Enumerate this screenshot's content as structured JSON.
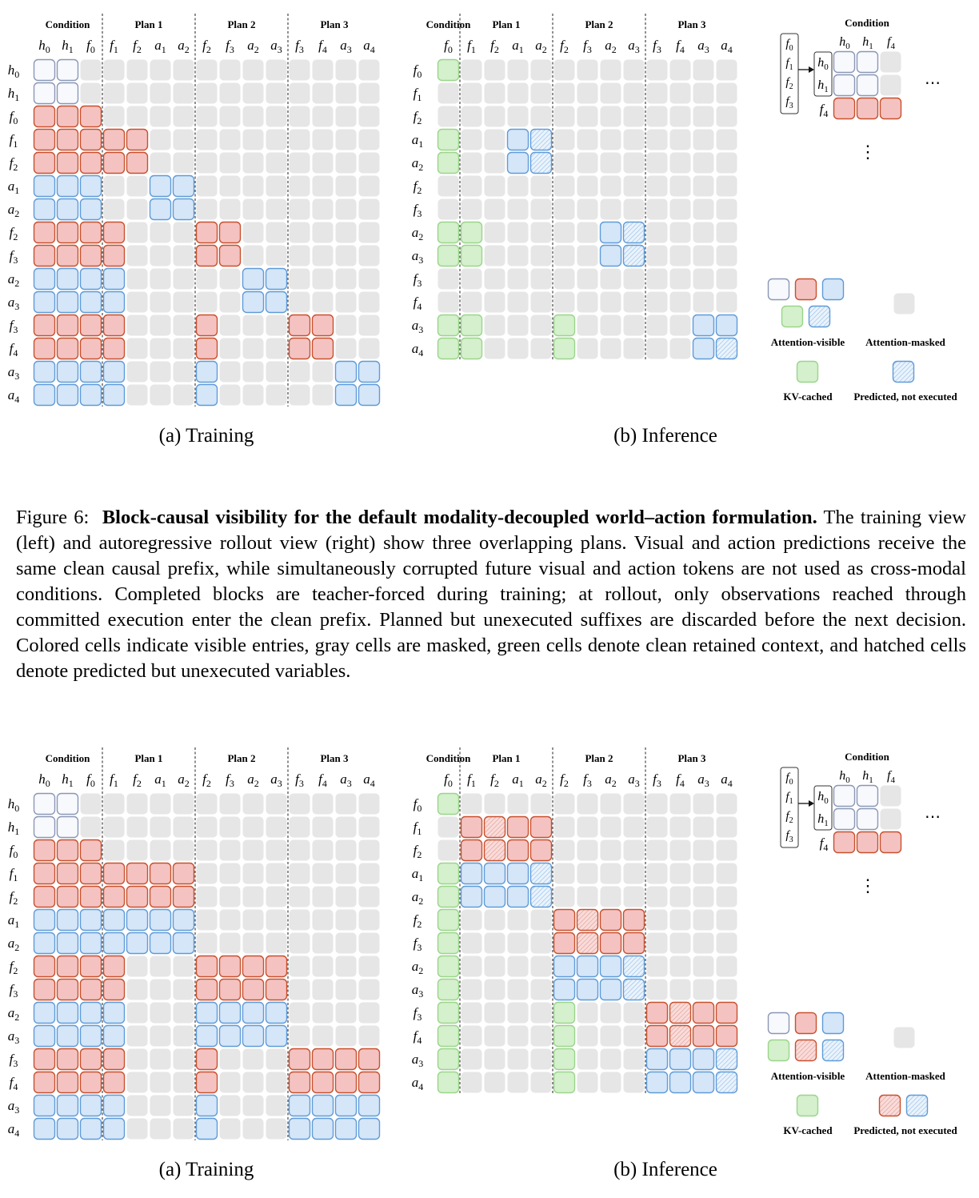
{
  "colors": {
    "masked": "#e6e6e6",
    "red_fill": "#f4c3c1",
    "red_stroke": "#c8502e",
    "blue_fill": "#d5e6f8",
    "blue_stroke": "#5f9bd8",
    "white_fill": "#f8f9fd",
    "white_stroke": "#8a97b6",
    "green_fill": "#d4f0cc",
    "green_stroke": "#9ad58a"
  },
  "icons": [
    "right-arrow-icon",
    "horizontal-ellipsis-icon",
    "vertical-ellipsis-icon"
  ],
  "header_groups_full": [
    "Condition",
    "Plan 1",
    "Plan 2",
    "Plan 3"
  ],
  "header_groups_inference": [
    "Condition",
    "Plan 1",
    "Plan 2",
    "Plan 3"
  ],
  "col_tokens_full": [
    {
      "b": "h",
      "s": "0"
    },
    {
      "b": "h",
      "s": "1"
    },
    {
      "b": "f",
      "s": "0"
    },
    {
      "b": "f",
      "s": "1"
    },
    {
      "b": "f",
      "s": "2"
    },
    {
      "b": "a",
      "s": "1"
    },
    {
      "b": "a",
      "s": "2"
    },
    {
      "b": "f",
      "s": "2"
    },
    {
      "b": "f",
      "s": "3"
    },
    {
      "b": "a",
      "s": "2"
    },
    {
      "b": "a",
      "s": "3"
    },
    {
      "b": "f",
      "s": "3"
    },
    {
      "b": "f",
      "s": "4"
    },
    {
      "b": "a",
      "s": "3"
    },
    {
      "b": "a",
      "s": "4"
    }
  ],
  "row_tokens_full": [
    {
      "b": "h",
      "s": "0"
    },
    {
      "b": "h",
      "s": "1"
    },
    {
      "b": "f",
      "s": "0"
    },
    {
      "b": "f",
      "s": "1"
    },
    {
      "b": "f",
      "s": "2"
    },
    {
      "b": "a",
      "s": "1"
    },
    {
      "b": "a",
      "s": "2"
    },
    {
      "b": "f",
      "s": "2"
    },
    {
      "b": "f",
      "s": "3"
    },
    {
      "b": "a",
      "s": "2"
    },
    {
      "b": "a",
      "s": "3"
    },
    {
      "b": "f",
      "s": "3"
    },
    {
      "b": "f",
      "s": "4"
    },
    {
      "b": "a",
      "s": "3"
    },
    {
      "b": "a",
      "s": "4"
    }
  ],
  "col_tokens_inference": [
    {
      "b": "f",
      "s": "0"
    },
    {
      "b": "f",
      "s": "1"
    },
    {
      "b": "f",
      "s": "2"
    },
    {
      "b": "a",
      "s": "1"
    },
    {
      "b": "a",
      "s": "2"
    },
    {
      "b": "f",
      "s": "2"
    },
    {
      "b": "f",
      "s": "3"
    },
    {
      "b": "a",
      "s": "2"
    },
    {
      "b": "a",
      "s": "3"
    },
    {
      "b": "f",
      "s": "3"
    },
    {
      "b": "f",
      "s": "4"
    },
    {
      "b": "a",
      "s": "3"
    },
    {
      "b": "a",
      "s": "4"
    }
  ],
  "row_tokens_inference": [
    {
      "b": "f",
      "s": "0"
    },
    {
      "b": "f",
      "s": "1"
    },
    {
      "b": "f",
      "s": "2"
    },
    {
      "b": "a",
      "s": "1"
    },
    {
      "b": "a",
      "s": "2"
    },
    {
      "b": "f",
      "s": "2"
    },
    {
      "b": "f",
      "s": "3"
    },
    {
      "b": "a",
      "s": "2"
    },
    {
      "b": "a",
      "s": "3"
    },
    {
      "b": "f",
      "s": "3"
    },
    {
      "b": "f",
      "s": "4"
    },
    {
      "b": "a",
      "s": "3"
    },
    {
      "b": "a",
      "s": "4"
    }
  ],
  "fig_top": {
    "training": {
      "label": "(a) Training",
      "grid": [
        "WW.............",
        "WW.............",
        "RRR............",
        "RRRRR..........",
        "RRRRR..........",
        "BBB..BB........",
        "BBB..BB........",
        "RRRR...RR......",
        "RRRR...RR......",
        "BBBB.....BB....",
        "BBBB.....BB....",
        "RRRR...R...RR..",
        "RRRR...R...RR..",
        "BBBB...B.....BB",
        "BBBB...B.....BB"
      ]
    },
    "inference": {
      "label": "(b) Inference",
      "grid": [
        "G............",
        ".............",
        ".............",
        "G..BH........",
        "G..BH........",
        ".............",
        ".............",
        "GG.....BH....",
        "GG.....BH....",
        ".............",
        ".............",
        "GG...G.....BB",
        "GG...G.....BH"
      ]
    },
    "legend": {
      "attention_visible": "Attention-visible",
      "attention_masked": "Attention-masked",
      "kv_cached": "KV-cached",
      "predicted_not_executed": "Predicted, not executed",
      "visible_swatches_row1": [
        "W",
        "R",
        "B"
      ],
      "visible_swatches_row2": [
        "G",
        "H"
      ],
      "predicted_swatches": [
        "H"
      ]
    }
  },
  "fig_bottom": {
    "training": {
      "label": "(a) Training",
      "grid": [
        "WW.............",
        "WW.............",
        "RRR............",
        "RRRRRRR........",
        "RRRRRRR........",
        "BBBBBBB........",
        "BBBBBBB........",
        "RRRR...RRRR....",
        "RRRR...RRRR....",
        "BBBB...BBBB....",
        "BBBB...BBBB....",
        "RRRR...R...RRRR",
        "RRRR...R...RRRR",
        "BBBB...B...BBBB",
        "BBBB...B...BBBB"
      ]
    },
    "inference": {
      "label": "(b) Inference",
      "grid": [
        "G............",
        ".RQRR........",
        ".RQRR........",
        "GBBBH........",
        "GBBBH........",
        "G....RQRR....",
        "G....RQRR....",
        "G....BBBH....",
        "G....BBBH....",
        "G....G...RQRR",
        "G....G...RQRR",
        "G....G...BBBH",
        "G....G...BBBH"
      ]
    },
    "legend": {
      "attention_visible": "Attention-visible",
      "attention_masked": "Attention-masked",
      "kv_cached": "KV-cached",
      "predicted_not_executed": "Predicted, not executed",
      "visible_swatches_row1": [
        "W",
        "R",
        "B"
      ],
      "visible_swatches_row2": [
        "G",
        "Q",
        "H"
      ],
      "predicted_swatches": [
        "Q",
        "H"
      ]
    }
  },
  "condition_inset": {
    "title": "Condition",
    "stack": [
      {
        "b": "f",
        "s": "0"
      },
      {
        "b": "f",
        "s": "1"
      },
      {
        "b": "f",
        "s": "2"
      },
      {
        "b": "f",
        "s": "3"
      }
    ],
    "h_tokens": [
      {
        "b": "h",
        "s": "0"
      },
      {
        "b": "h",
        "s": "1"
      }
    ],
    "col_tokens": [
      {
        "b": "h",
        "s": "0"
      },
      {
        "b": "h",
        "s": "1"
      },
      {
        "b": "f",
        "s": "4"
      }
    ],
    "f_row": {
      "b": "f",
      "s": "4"
    },
    "grid": [
      "WW.",
      "WW.",
      "RRR"
    ],
    "h_ellipsis": "⋯",
    "v_ellipsis": "⋮"
  },
  "caption": {
    "figure_label": "Figure 6:",
    "bold_title": "Block-causal visibility for the default modality-decoupled world–action formulation.",
    "body": "The training view (left) and autoregressive rollout view (right) show three overlapping plans. Visual and action predictions receive the same clean causal prefix, while simultaneously corrupted future visual and action tokens are not used as cross-modal conditions. Completed blocks are teacher-forced during training; at rollout, only observations reached through committed execution enter the clean prefix. Planned but unexecuted suffixes are discarded before the next decision. Colored cells indicate visible entries, gray cells are masked, green cells denote clean retained context, and hatched cells denote predicted but unexecuted variables."
  }
}
